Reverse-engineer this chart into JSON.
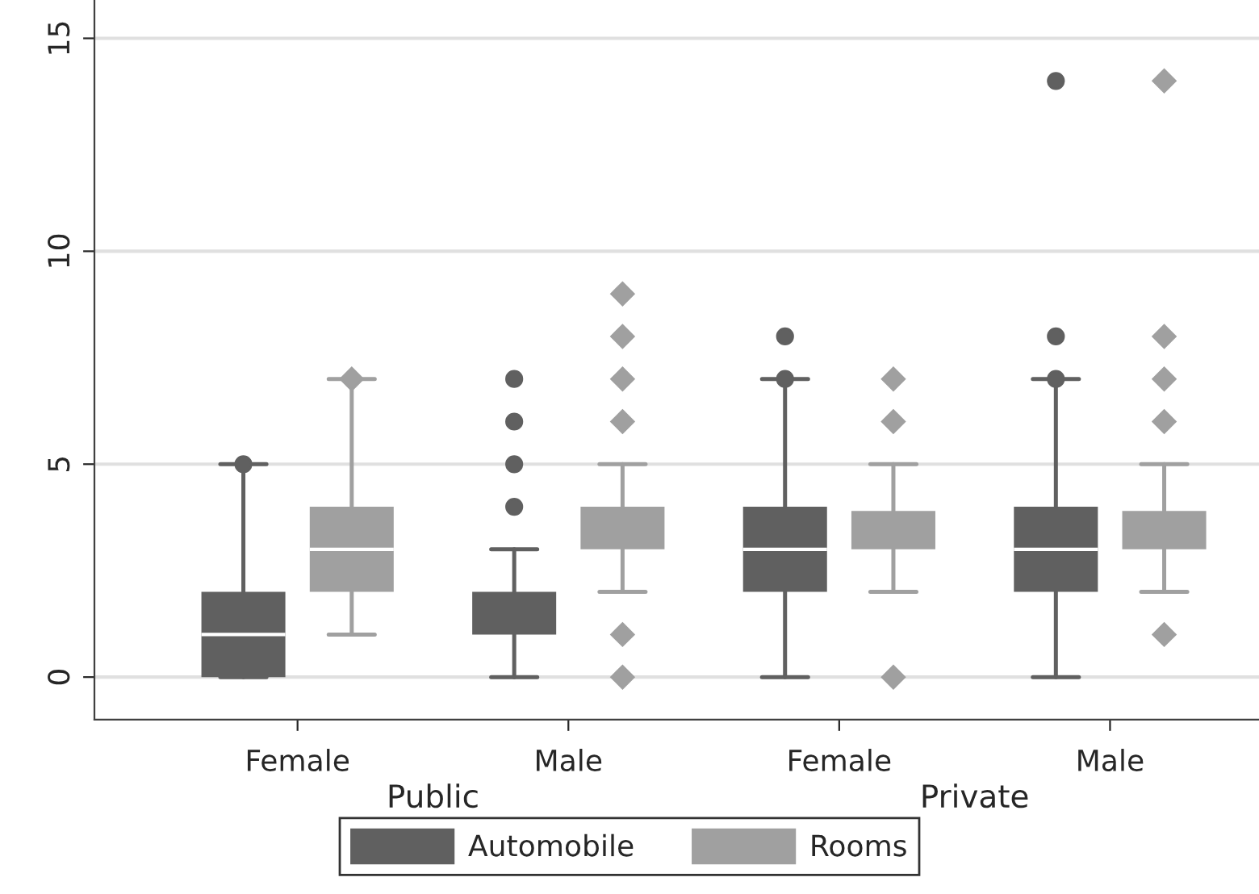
{
  "chart_data": {
    "type": "box",
    "categories": [
      "Female",
      "Male",
      "Female",
      "Male"
    ],
    "annotations": [
      "Public",
      "Private"
    ],
    "series": [
      {
        "name": "Automobile",
        "color": "#606060",
        "marker": "circle",
        "boxes": [
          {
            "low": 0,
            "q1": 0,
            "median": 1,
            "q3": 2,
            "high": 5,
            "outliers": [
              5
            ]
          },
          {
            "low": 0,
            "q1": 1,
            "median": 1,
            "q3": 2,
            "high": 3,
            "outliers": [
              4,
              5,
              6,
              7
            ]
          },
          {
            "low": 0,
            "q1": 2,
            "median": 3,
            "q3": 4,
            "high": 7,
            "outliers": [
              7,
              8
            ]
          },
          {
            "low": 0,
            "q1": 2,
            "median": 3,
            "q3": 4,
            "high": 7,
            "outliers": [
              7,
              8,
              14
            ]
          }
        ]
      },
      {
        "name": "Rooms",
        "color": "#a0a0a0",
        "marker": "diamond",
        "boxes": [
          {
            "low": 1,
            "q1": 2,
            "median": 3,
            "q3": 4,
            "high": 7,
            "outliers": [
              7
            ]
          },
          {
            "low": 2,
            "q1": 3,
            "median": 3,
            "q3": 4,
            "high": 5,
            "outliers": [
              0,
              1,
              6,
              7,
              8,
              9
            ]
          },
          {
            "low": 2,
            "q1": 3,
            "median": 3,
            "q3": 3.9,
            "high": 5,
            "outliers": [
              0,
              6,
              7
            ]
          },
          {
            "low": 2,
            "q1": 3,
            "median": 3,
            "q3": 3.9,
            "high": 5,
            "outliers": [
              1,
              6,
              7,
              8,
              14
            ]
          }
        ]
      }
    ],
    "ylim": [
      -1,
      15.9
    ],
    "yticks": [
      0,
      5,
      10,
      15
    ],
    "grid": "y",
    "legend": "bottom"
  }
}
